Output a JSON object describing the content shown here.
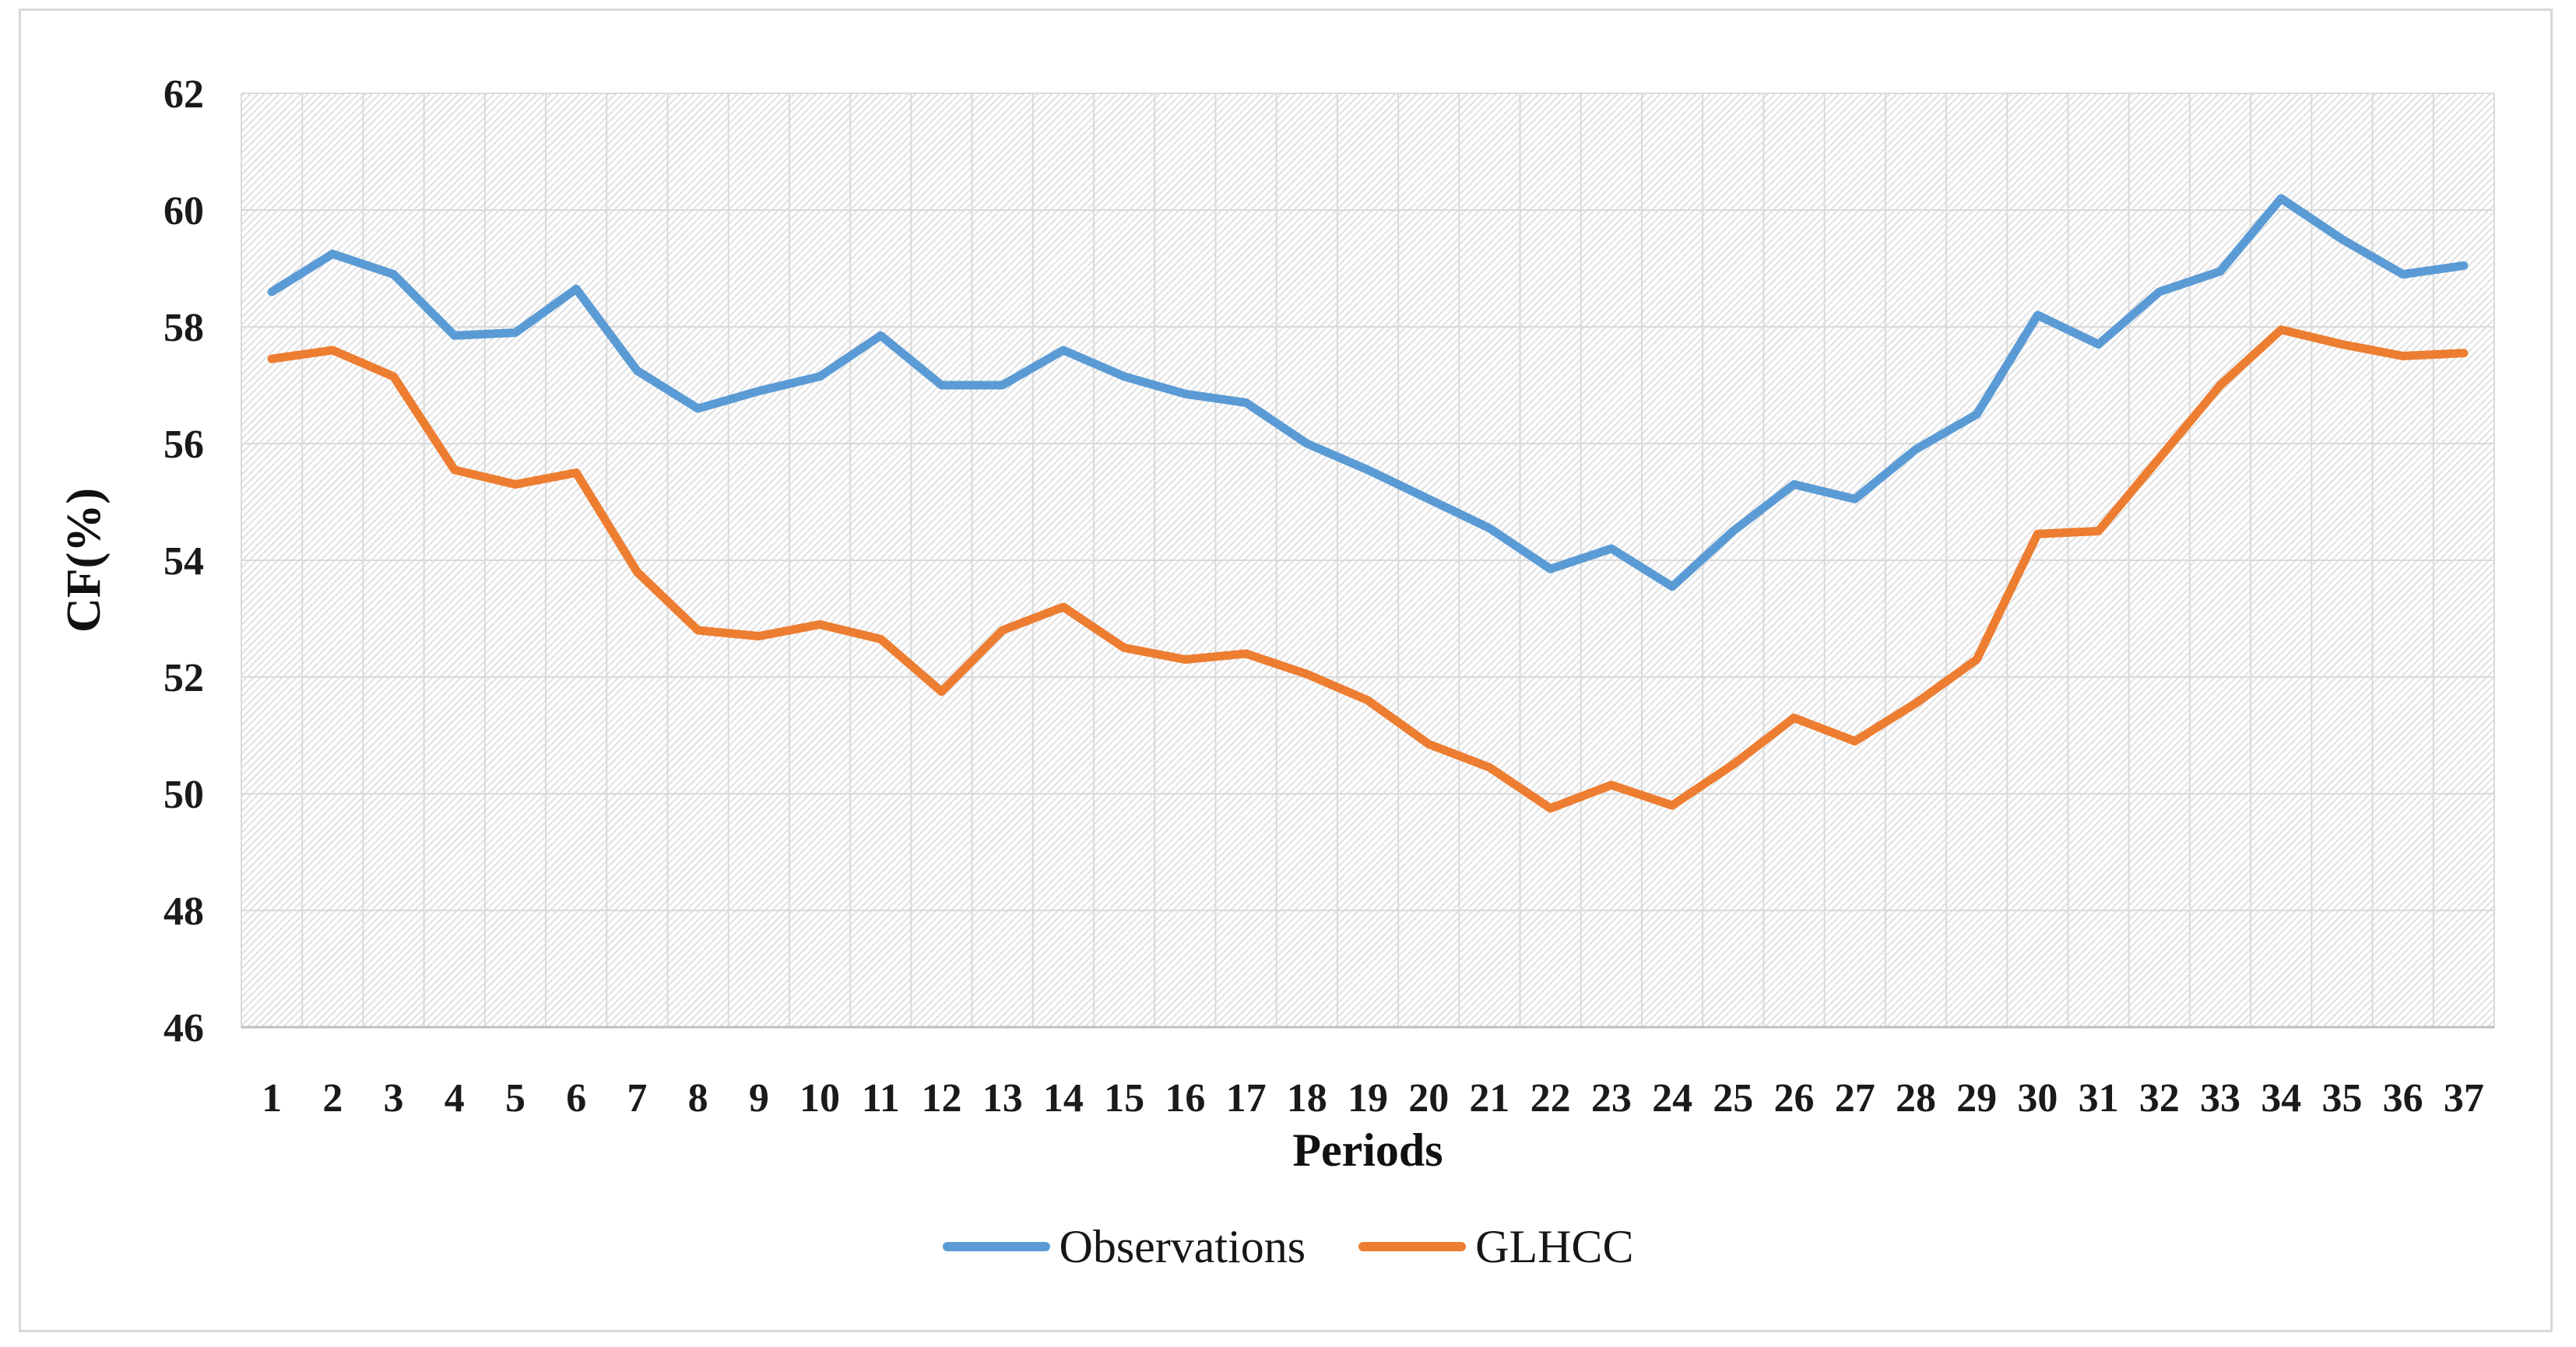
{
  "figure": {
    "y_axis_title": "CF(%)",
    "x_axis_title": "Periods"
  },
  "legend": {
    "items": [
      {
        "label": "Observations",
        "color": "#5B9BD5"
      },
      {
        "label": "GLHCC",
        "color": "#ED7D31"
      }
    ]
  },
  "chart_data": {
    "type": "line",
    "title": "",
    "xlabel": "Periods",
    "ylabel": "CF(%)",
    "x": [
      1,
      2,
      3,
      4,
      5,
      6,
      7,
      8,
      9,
      10,
      11,
      12,
      13,
      14,
      15,
      16,
      17,
      18,
      19,
      20,
      21,
      22,
      23,
      24,
      25,
      26,
      27,
      28,
      29,
      30,
      31,
      32,
      33,
      34,
      35,
      36,
      37
    ],
    "series": [
      {
        "name": "Observations",
        "color": "#5B9BD5",
        "values": [
          58.6,
          59.25,
          58.9,
          57.85,
          57.9,
          58.65,
          57.25,
          56.6,
          56.9,
          57.15,
          57.85,
          57.0,
          57.0,
          57.6,
          57.15,
          56.85,
          56.7,
          56.0,
          55.55,
          55.05,
          54.55,
          53.85,
          54.2,
          53.55,
          54.5,
          55.3,
          55.05,
          55.9,
          56.5,
          58.2,
          57.7,
          58.6,
          58.95,
          60.2,
          59.5,
          58.9,
          59.05
        ]
      },
      {
        "name": "GLHCC",
        "color": "#ED7D31",
        "values": [
          57.45,
          57.6,
          57.15,
          55.55,
          55.3,
          55.5,
          53.8,
          52.8,
          52.7,
          52.9,
          52.65,
          51.75,
          52.8,
          53.2,
          52.5,
          52.3,
          52.4,
          52.05,
          51.6,
          50.85,
          50.45,
          49.75,
          50.15,
          49.8,
          50.5,
          51.3,
          50.9,
          51.55,
          52.3,
          54.45,
          54.5,
          55.75,
          57.0,
          57.95,
          57.7,
          57.5,
          57.55
        ]
      }
    ],
    "ylim": [
      46,
      62
    ],
    "ytick_step": 2,
    "grid": true,
    "plot_background": "light-downward-diagonal-hatch",
    "legend_position": "bottom",
    "line_width": 11,
    "colors": {
      "gridline": "#DADADA",
      "axis_line": "#BFBFBF",
      "hatch_line": "#E0E0E0",
      "text": "#1A1A1A",
      "figure_border": "#D8D8D8"
    }
  }
}
